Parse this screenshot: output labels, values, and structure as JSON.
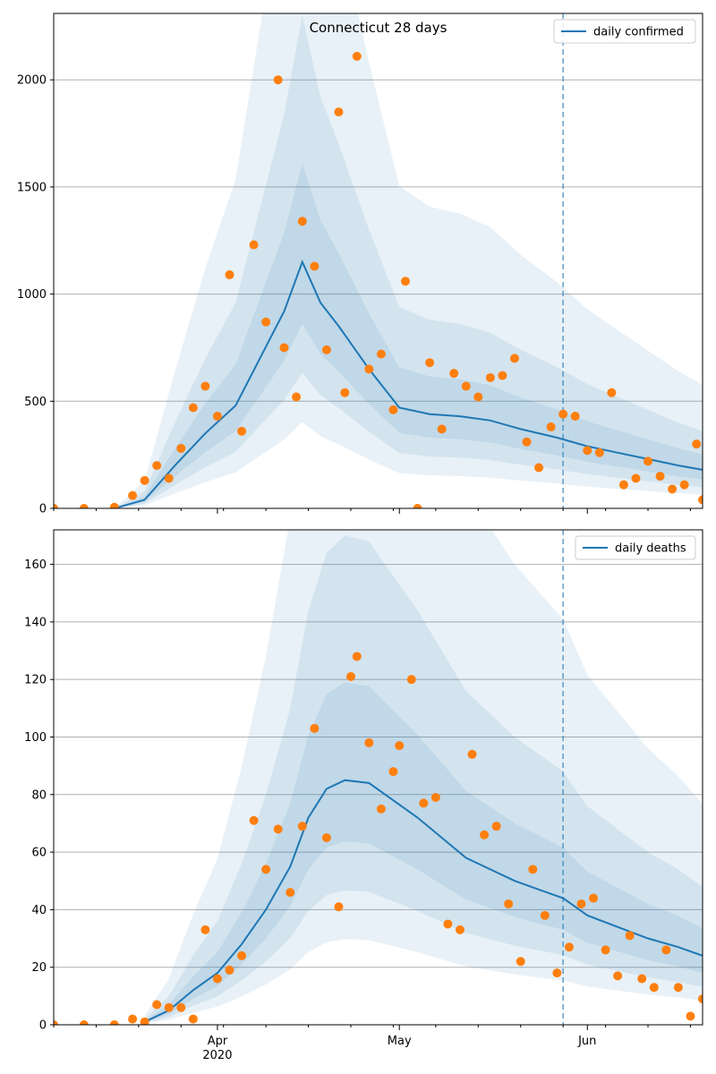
{
  "chart_data": [
    {
      "type": "line",
      "title": "Connecticut 28 days",
      "xlabel": "",
      "ylabel": "",
      "xlim": [
        "2020-03-05",
        "2020-06-20"
      ],
      "ylim": [
        0,
        2310
      ],
      "yticks": [
        0,
        500,
        1000,
        1500,
        2000
      ],
      "xticks": [
        {
          "date": "2020-04-01",
          "label": "Apr",
          "sublabel": "2020"
        },
        {
          "date": "2020-05-01",
          "label": "May",
          "sublabel": ""
        },
        {
          "date": "2020-06-01",
          "label": "Jun",
          "sublabel": ""
        }
      ],
      "grid": "horizontal",
      "legend": {
        "position": "top-right",
        "label": "daily confirmed"
      },
      "vline_date": "2020-05-28",
      "series": [
        {
          "name": "daily confirmed",
          "kind": "model-median",
          "x": [
            "2020-03-15",
            "2020-03-20",
            "2020-03-25",
            "2020-03-30",
            "2020-04-04",
            "2020-04-08",
            "2020-04-12",
            "2020-04-15",
            "2020-04-18",
            "2020-04-21",
            "2020-04-26",
            "2020-05-01",
            "2020-05-06",
            "2020-05-11",
            "2020-05-16",
            "2020-05-21",
            "2020-05-27",
            "2020-06-01",
            "2020-06-06",
            "2020-06-11",
            "2020-06-16",
            "2020-06-20"
          ],
          "y": [
            0,
            40,
            200,
            350,
            480,
            700,
            920,
            1150,
            960,
            850,
            650,
            470,
            440,
            430,
            410,
            370,
            330,
            290,
            260,
            230,
            200,
            180
          ]
        },
        {
          "name": "",
          "kind": "observed",
          "x": [
            "2020-03-05",
            "2020-03-10",
            "2020-03-15",
            "2020-03-18",
            "2020-03-20",
            "2020-03-22",
            "2020-03-24",
            "2020-03-26",
            "2020-03-28",
            "2020-03-30",
            "2020-04-01",
            "2020-04-03",
            "2020-04-05",
            "2020-04-07",
            "2020-04-09",
            "2020-04-11",
            "2020-04-12",
            "2020-04-14",
            "2020-04-15",
            "2020-04-17",
            "2020-04-19",
            "2020-04-21",
            "2020-04-22",
            "2020-04-24",
            "2020-04-26",
            "2020-04-28",
            "2020-04-30",
            "2020-05-02",
            "2020-05-04",
            "2020-05-06",
            "2020-05-08",
            "2020-05-10",
            "2020-05-12",
            "2020-05-14",
            "2020-05-16",
            "2020-05-18",
            "2020-05-20",
            "2020-05-22",
            "2020-05-24",
            "2020-05-26",
            "2020-05-28",
            "2020-05-30",
            "2020-06-01",
            "2020-06-03",
            "2020-06-05",
            "2020-06-07",
            "2020-06-09",
            "2020-06-11",
            "2020-06-13",
            "2020-06-15",
            "2020-06-17",
            "2020-06-19",
            "2020-06-20"
          ],
          "y": [
            0,
            0,
            5,
            60,
            130,
            200,
            140,
            280,
            470,
            570,
            430,
            1090,
            360,
            1230,
            870,
            2000,
            750,
            520,
            1340,
            1130,
            740,
            1850,
            540,
            2110,
            650,
            720,
            460,
            1060,
            0,
            680,
            370,
            630,
            570,
            520,
            610,
            620,
            700,
            310,
            190,
            380,
            440,
            430,
            270,
            260,
            540,
            110,
            140,
            220,
            150,
            90,
            110,
            300,
            40
          ]
        }
      ]
    },
    {
      "type": "line",
      "title": "",
      "xlabel": "",
      "ylabel": "",
      "xlim": [
        "2020-03-05",
        "2020-06-20"
      ],
      "ylim": [
        0,
        172
      ],
      "yticks": [
        0,
        20,
        40,
        60,
        80,
        100,
        120,
        140,
        160
      ],
      "xticks": [
        {
          "date": "2020-04-01",
          "label": "Apr",
          "sublabel": "2020"
        },
        {
          "date": "2020-05-01",
          "label": "May",
          "sublabel": ""
        },
        {
          "date": "2020-06-01",
          "label": "Jun",
          "sublabel": ""
        }
      ],
      "grid": "horizontal",
      "legend": {
        "position": "top-right",
        "label": "daily deaths"
      },
      "vline_date": "2020-05-28",
      "series": [
        {
          "name": "daily deaths",
          "kind": "model-median",
          "x": [
            "2020-03-20",
            "2020-03-24",
            "2020-03-28",
            "2020-04-01",
            "2020-04-05",
            "2020-04-09",
            "2020-04-13",
            "2020-04-16",
            "2020-04-19",
            "2020-04-22",
            "2020-04-26",
            "2020-04-30",
            "2020-05-04",
            "2020-05-08",
            "2020-05-12",
            "2020-05-16",
            "2020-05-20",
            "2020-05-24",
            "2020-05-28",
            "2020-06-01",
            "2020-06-06",
            "2020-06-11",
            "2020-06-16",
            "2020-06-20"
          ],
          "y": [
            1,
            5,
            12,
            18,
            28,
            40,
            55,
            72,
            82,
            85,
            84,
            78,
            72,
            65,
            58,
            54,
            50,
            47,
            44,
            38,
            34,
            30,
            27,
            24
          ]
        },
        {
          "name": "",
          "kind": "observed",
          "x": [
            "2020-03-05",
            "2020-03-10",
            "2020-03-15",
            "2020-03-18",
            "2020-03-20",
            "2020-03-22",
            "2020-03-24",
            "2020-03-26",
            "2020-03-28",
            "2020-03-30",
            "2020-04-01",
            "2020-04-03",
            "2020-04-05",
            "2020-04-07",
            "2020-04-09",
            "2020-04-11",
            "2020-04-13",
            "2020-04-15",
            "2020-04-17",
            "2020-04-19",
            "2020-04-21",
            "2020-04-23",
            "2020-04-24",
            "2020-04-26",
            "2020-04-28",
            "2020-04-30",
            "2020-05-01",
            "2020-05-03",
            "2020-05-05",
            "2020-05-07",
            "2020-05-09",
            "2020-05-11",
            "2020-05-13",
            "2020-05-15",
            "2020-05-17",
            "2020-05-19",
            "2020-05-21",
            "2020-05-23",
            "2020-05-25",
            "2020-05-27",
            "2020-05-29",
            "2020-05-31",
            "2020-06-02",
            "2020-06-04",
            "2020-06-06",
            "2020-06-08",
            "2020-06-10",
            "2020-06-12",
            "2020-06-14",
            "2020-06-16",
            "2020-06-18",
            "2020-06-20"
          ],
          "y": [
            0,
            0,
            0,
            2,
            1,
            7,
            6,
            6,
            2,
            33,
            16,
            19,
            24,
            71,
            54,
            68,
            46,
            69,
            103,
            65,
            41,
            121,
            128,
            98,
            75,
            88,
            97,
            120,
            77,
            79,
            35,
            33,
            94,
            66,
            69,
            42,
            22,
            54,
            38,
            18,
            27,
            42,
            44,
            26,
            17,
            31,
            16,
            13,
            26,
            13,
            3,
            9
          ]
        }
      ]
    }
  ]
}
